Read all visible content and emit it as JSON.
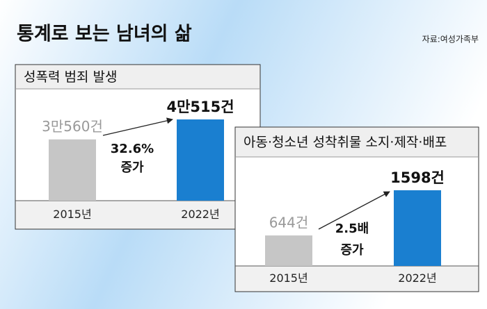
{
  "title": "통계로 보는 남녀의 삶",
  "source": "자료:여성가족부",
  "chart_data": [
    {
      "type": "bar",
      "title": "성폭력 범죄 발생",
      "categories": [
        "2015년",
        "2022년"
      ],
      "values": [
        30560,
        40515
      ],
      "value_labels": [
        "3만560건",
        "4만515건"
      ],
      "colors": [
        "#c6c6c6",
        "#1a7fd0"
      ],
      "annotation": [
        "32.6%",
        "증가"
      ]
    },
    {
      "type": "bar",
      "title": "아동·청소년 성착취물 소지·제작·배포",
      "categories": [
        "2015년",
        "2022년"
      ],
      "values": [
        644,
        1598
      ],
      "value_labels": [
        "644건",
        "1598건"
      ],
      "colors": [
        "#c6c6c6",
        "#1a7fd0"
      ],
      "annotation": [
        "2.5배",
        "증가"
      ]
    }
  ]
}
